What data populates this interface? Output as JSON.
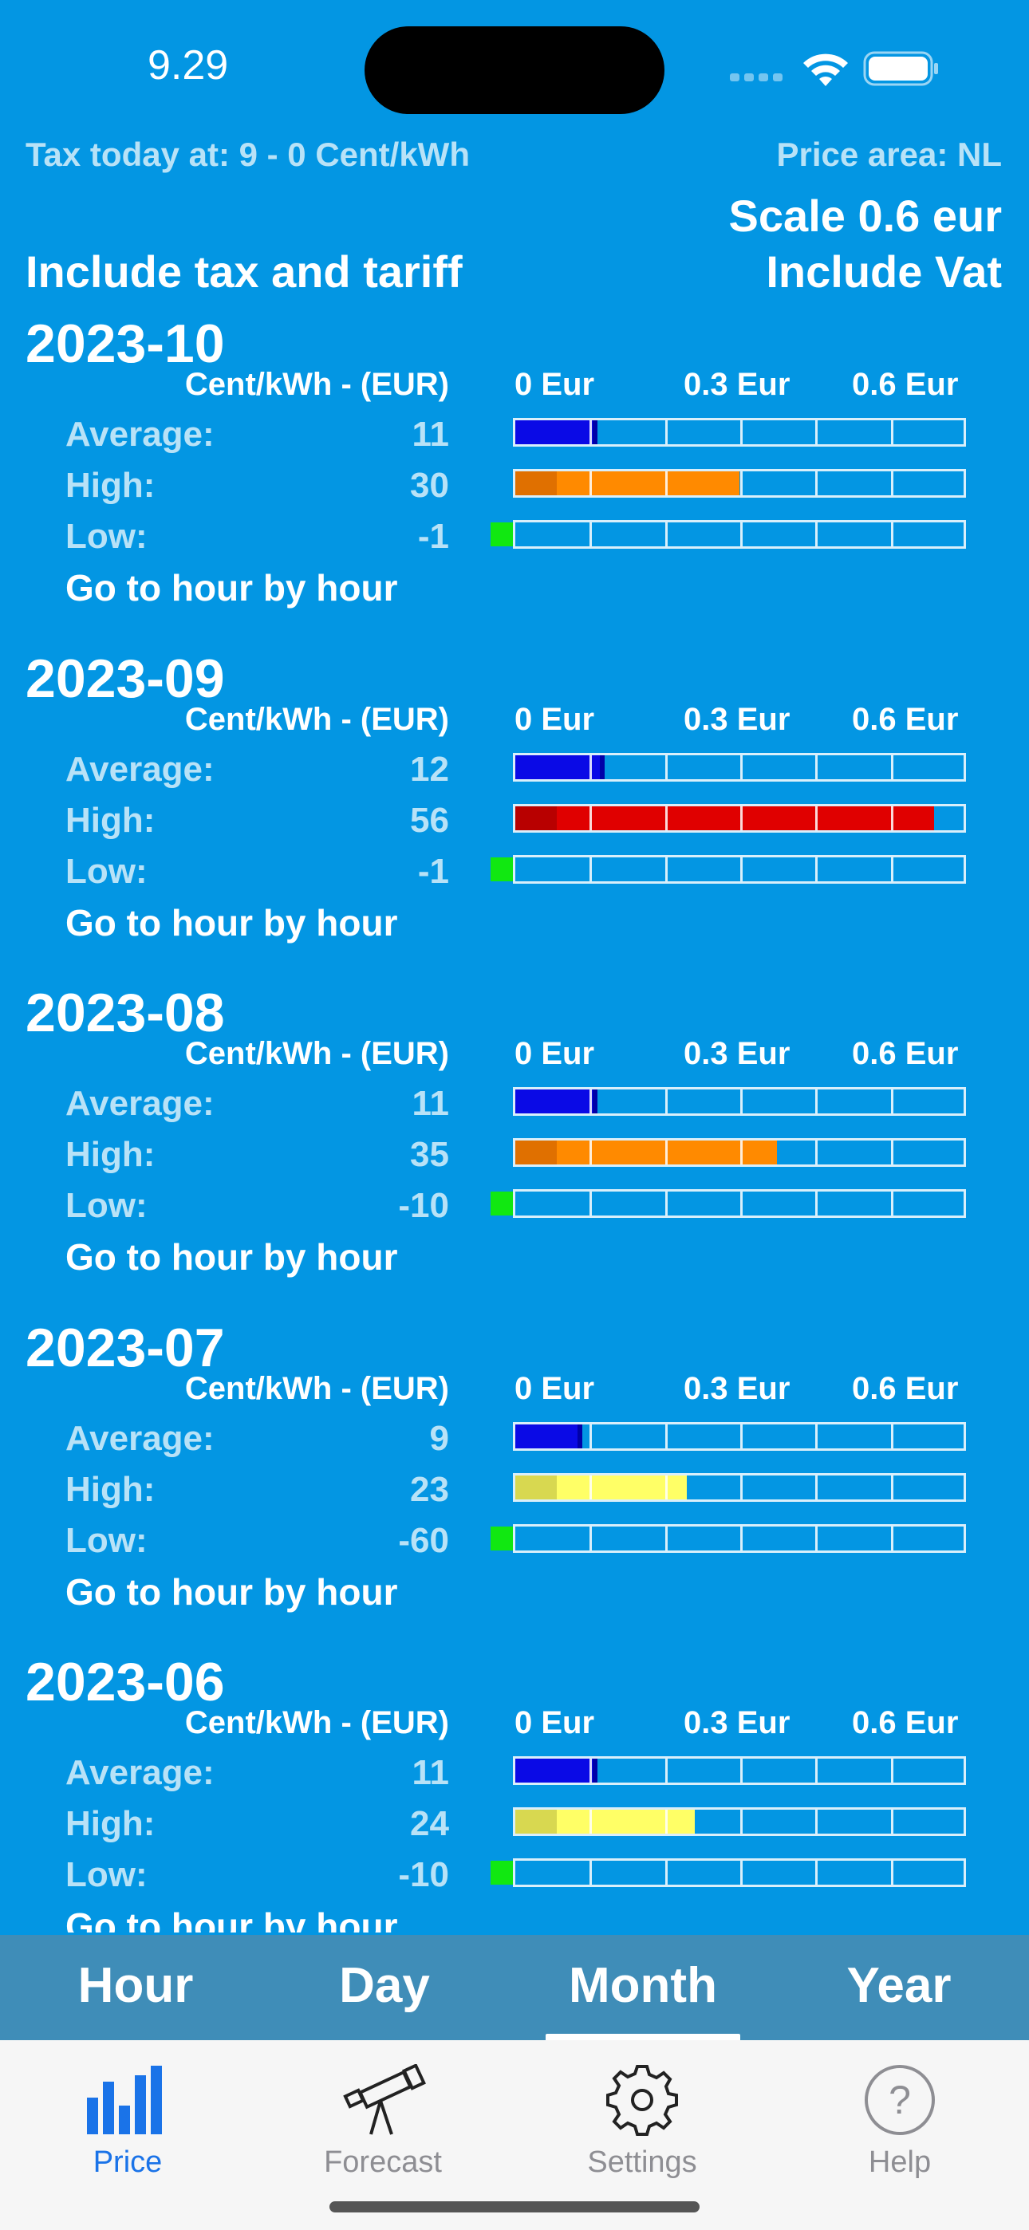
{
  "status_bar": {
    "time": "9.29",
    "icons": [
      "signal-dots-icon",
      "wifi-icon",
      "battery-icon"
    ]
  },
  "info": {
    "tax_today": "Tax today at: 9 - 0 Cent/kWh",
    "price_area": "Price area: NL",
    "scale": "Scale 0.6 eur",
    "include_tax": "Include tax and tariff",
    "include_vat": "Include Vat"
  },
  "header_labels": {
    "unit": "Cent/kWh - (EUR)",
    "scale_0": "0 Eur",
    "scale_1": "0.3 Eur",
    "scale_2": "0.6 Eur",
    "average": "Average:",
    "high": "High:",
    "low": "Low:",
    "goto": "Go to hour by hour"
  },
  "colors": {
    "background": "#0396e3",
    "average_bar": "#0a0ae6",
    "average_bar_dark": "#0000a8",
    "low_marker": "#11e811",
    "orange": "#ff8a00",
    "orange_dark": "#e07000",
    "red": "#e00000",
    "red_dark": "#b80000",
    "yellow": "#ffff66",
    "yellow_dark": "#d8d850"
  },
  "scale_max_cent": 60,
  "months": [
    {
      "title": "2023-10",
      "average": "11",
      "high": "30",
      "low": "-1",
      "avg_cent": 11,
      "high_cent": 30,
      "high_color": "orange"
    },
    {
      "title": "2023-09",
      "average": "12",
      "high": "56",
      "low": "-1",
      "avg_cent": 12,
      "high_cent": 56,
      "high_color": "red"
    },
    {
      "title": "2023-08",
      "average": "11",
      "high": "35",
      "low": "-10",
      "avg_cent": 11,
      "high_cent": 35,
      "high_color": "orange"
    },
    {
      "title": "2023-07",
      "average": "9",
      "high": "23",
      "low": "-60",
      "avg_cent": 9,
      "high_cent": 23,
      "high_color": "yellow"
    },
    {
      "title": "2023-06",
      "average": "11",
      "high": "24",
      "low": "-10",
      "avg_cent": 11,
      "high_cent": 24,
      "high_color": "yellow"
    }
  ],
  "segmented": {
    "items": [
      "Hour",
      "Day",
      "Month",
      "Year"
    ],
    "selected": "Month"
  },
  "tabs": [
    {
      "label": "Price",
      "icon": "bar-chart-icon",
      "active": true
    },
    {
      "label": "Forecast",
      "icon": "telescope-icon",
      "active": false
    },
    {
      "label": "Settings",
      "icon": "gear-icon",
      "active": false
    },
    {
      "label": "Help",
      "icon": "question-circle-icon",
      "active": false
    }
  ]
}
